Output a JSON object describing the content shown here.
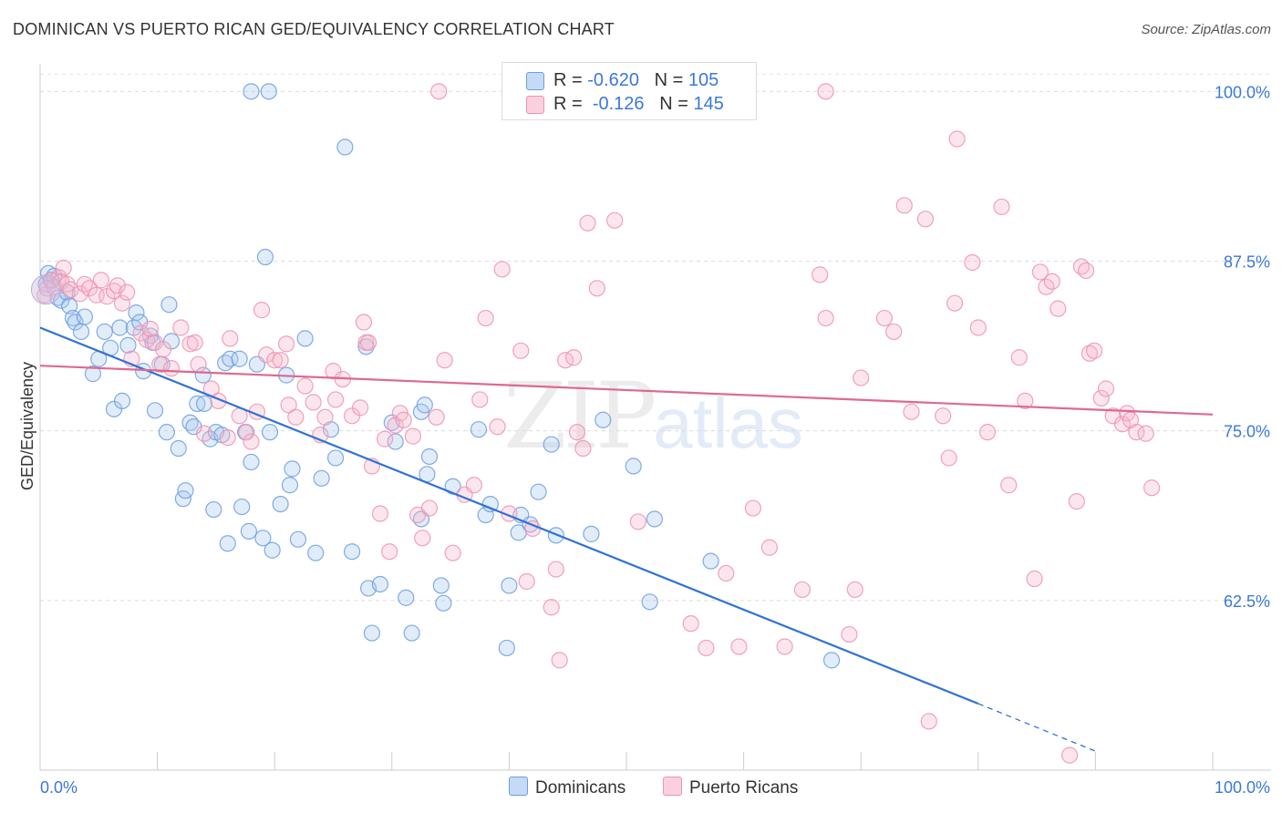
{
  "header": {
    "title": "DOMINICAN VS PUERTO RICAN GED/EQUIVALENCY CORRELATION CHART",
    "source": "Source: ZipAtlas.com"
  },
  "legend": {
    "rows": [
      {
        "r_label": "R =",
        "r_value": "-0.620",
        "n_label": "N =",
        "n_value": "105",
        "color": "#a9c8ee"
      },
      {
        "r_label": "R =",
        "r_value": "-0.126",
        "n_label": "N =",
        "n_value": "145",
        "color": "#f5b8cb"
      }
    ]
  },
  "series_legend": [
    "Dominicans",
    "Puerto Ricans"
  ],
  "watermark": {
    "zip": "ZIP",
    "atlas": "atlas"
  },
  "chart_data": {
    "type": "scatter",
    "ylabel": "GED/Equivalency",
    "xlabel": "",
    "x_tick_labels": [
      "0.0%",
      "100.0%"
    ],
    "y_tick_labels": [
      "62.5%",
      "75.0%",
      "87.5%",
      "100.0%"
    ],
    "y_ticks": [
      62.5,
      75.0,
      87.5,
      100.0
    ],
    "xlim": [
      0,
      100
    ],
    "ylim": [
      50.0,
      101.5
    ],
    "grid": true,
    "colors": {
      "Dominicans": "#6b9edf",
      "Puerto Ricans": "#ee92b0",
      "Dominicans_line": "#2f72d6",
      "Puerto Ricans_line": "#e0688f"
    },
    "series": [
      {
        "name": "Dominicans",
        "trend": {
          "x0": 0,
          "y0": 82.6,
          "x1": 80,
          "y1": 54.9,
          "dash_to_x": 90,
          "dash_to_y": 51.4
        },
        "points": [
          [
            0.5,
            85.8
          ],
          [
            0.7,
            86.6
          ],
          [
            1.0,
            86.1
          ],
          [
            1.2,
            86.4
          ],
          [
            1.5,
            84.8
          ],
          [
            1.8,
            84.6
          ],
          [
            2.3,
            85.2
          ],
          [
            2.5,
            84.2
          ],
          [
            2.8,
            83.3
          ],
          [
            3.0,
            83.0
          ],
          [
            3.5,
            82.3
          ],
          [
            3.8,
            83.4
          ],
          [
            4.5,
            79.2
          ],
          [
            5.0,
            80.3
          ],
          [
            5.5,
            82.3
          ],
          [
            6.0,
            81.1
          ],
          [
            6.3,
            76.6
          ],
          [
            6.8,
            82.6
          ],
          [
            7.0,
            77.2
          ],
          [
            7.5,
            81.3
          ],
          [
            8.0,
            82.6
          ],
          [
            8.2,
            83.7
          ],
          [
            8.5,
            83.0
          ],
          [
            8.8,
            79.4
          ],
          [
            9.4,
            82.0
          ],
          [
            9.6,
            81.5
          ],
          [
            9.8,
            76.5
          ],
          [
            10.4,
            79.9
          ],
          [
            10.8,
            74.9
          ],
          [
            11.0,
            84.3
          ],
          [
            11.2,
            81.6
          ],
          [
            11.8,
            73.7
          ],
          [
            12.2,
            70.0
          ],
          [
            12.4,
            70.6
          ],
          [
            12.8,
            75.6
          ],
          [
            13.1,
            75.3
          ],
          [
            13.4,
            77.0
          ],
          [
            13.9,
            79.1
          ],
          [
            14.0,
            77.0
          ],
          [
            14.5,
            74.4
          ],
          [
            14.8,
            69.2
          ],
          [
            15.0,
            74.9
          ],
          [
            15.5,
            74.7
          ],
          [
            15.8,
            80.0
          ],
          [
            16.2,
            80.3
          ],
          [
            16.0,
            66.7
          ],
          [
            17.0,
            80.3
          ],
          [
            17.2,
            69.4
          ],
          [
            17.5,
            74.9
          ],
          [
            17.8,
            67.6
          ],
          [
            18.0,
            72.7
          ],
          [
            18.5,
            79.9
          ],
          [
            19.0,
            67.1
          ],
          [
            19.2,
            87.8
          ],
          [
            19.6,
            74.9
          ],
          [
            19.8,
            66.2
          ],
          [
            20.5,
            69.6
          ],
          [
            21.0,
            79.1
          ],
          [
            21.3,
            71.0
          ],
          [
            21.5,
            72.2
          ],
          [
            22.0,
            67.0
          ],
          [
            22.6,
            81.8
          ],
          [
            23.5,
            66.0
          ],
          [
            24.0,
            71.5
          ],
          [
            24.8,
            75.1
          ],
          [
            25.2,
            73.0
          ],
          [
            26.0,
            95.9
          ],
          [
            26.6,
            66.1
          ],
          [
            27.8,
            81.2
          ],
          [
            28.0,
            63.4
          ],
          [
            28.3,
            60.1
          ],
          [
            29.0,
            63.7
          ],
          [
            30.0,
            75.6
          ],
          [
            30.3,
            74.2
          ],
          [
            31.2,
            62.7
          ],
          [
            31.7,
            60.1
          ],
          [
            32.5,
            68.5
          ],
          [
            32.5,
            76.4
          ],
          [
            32.8,
            76.9
          ],
          [
            33.0,
            71.8
          ],
          [
            33.2,
            73.1
          ],
          [
            34.2,
            63.6
          ],
          [
            34.4,
            62.3
          ],
          [
            35.2,
            70.9
          ],
          [
            37.4,
            75.1
          ],
          [
            38.0,
            68.8
          ],
          [
            38.4,
            69.6
          ],
          [
            40.0,
            63.6
          ],
          [
            39.8,
            59.0
          ],
          [
            40.8,
            67.5
          ],
          [
            41.0,
            68.8
          ],
          [
            41.8,
            68.1
          ],
          [
            42.5,
            70.5
          ],
          [
            44.0,
            67.3
          ],
          [
            43.6,
            74.0
          ],
          [
            47.0,
            67.4
          ],
          [
            48.0,
            75.8
          ],
          [
            50.6,
            72.4
          ],
          [
            52.0,
            62.4
          ],
          [
            52.4,
            68.5
          ],
          [
            57.2,
            65.4
          ],
          [
            67.5,
            58.1
          ],
          [
            18.0,
            100.0
          ],
          [
            19.5,
            100.0
          ]
        ]
      },
      {
        "name": "Puerto Ricans",
        "trend": {
          "x0": 0,
          "y0": 79.8,
          "x1": 100,
          "y1": 76.2
        },
        "points": [
          [
            0.4,
            85.0
          ],
          [
            0.6,
            85.5
          ],
          [
            0.9,
            86.1
          ],
          [
            1.2,
            85.6
          ],
          [
            1.6,
            86.3
          ],
          [
            1.8,
            86.0
          ],
          [
            2.0,
            87.0
          ],
          [
            2.3,
            85.8
          ],
          [
            2.6,
            85.4
          ],
          [
            3.4,
            85.1
          ],
          [
            3.8,
            85.8
          ],
          [
            4.2,
            85.5
          ],
          [
            4.8,
            85.0
          ],
          [
            5.2,
            86.1
          ],
          [
            5.7,
            84.9
          ],
          [
            6.3,
            85.3
          ],
          [
            6.6,
            85.7
          ],
          [
            7.0,
            84.4
          ],
          [
            7.4,
            85.2
          ],
          [
            7.8,
            80.3
          ],
          [
            8.6,
            82.2
          ],
          [
            9.1,
            81.7
          ],
          [
            9.4,
            82.5
          ],
          [
            9.8,
            81.5
          ],
          [
            10.2,
            79.9
          ],
          [
            10.5,
            81.0
          ],
          [
            11.2,
            79.6
          ],
          [
            12.0,
            82.6
          ],
          [
            12.8,
            81.4
          ],
          [
            13.2,
            81.5
          ],
          [
            13.5,
            79.9
          ],
          [
            14.0,
            74.8
          ],
          [
            14.6,
            78.1
          ],
          [
            15.2,
            77.2
          ],
          [
            16.0,
            74.5
          ],
          [
            16.2,
            81.8
          ],
          [
            17.0,
            76.1
          ],
          [
            17.6,
            74.9
          ],
          [
            18.0,
            74.2
          ],
          [
            18.5,
            76.4
          ],
          [
            18.9,
            83.9
          ],
          [
            19.3,
            80.6
          ],
          [
            20.0,
            80.2
          ],
          [
            20.5,
            80.2
          ],
          [
            21.0,
            81.4
          ],
          [
            21.2,
            76.9
          ],
          [
            21.8,
            76.0
          ],
          [
            22.6,
            78.3
          ],
          [
            23.3,
            77.1
          ],
          [
            23.9,
            74.7
          ],
          [
            24.3,
            76.0
          ],
          [
            25.0,
            79.4
          ],
          [
            25.2,
            77.3
          ],
          [
            25.8,
            78.8
          ],
          [
            26.6,
            76.1
          ],
          [
            27.3,
            76.7
          ],
          [
            27.6,
            83.0
          ],
          [
            27.8,
            81.5
          ],
          [
            28.0,
            81.5
          ],
          [
            28.3,
            72.4
          ],
          [
            29.0,
            68.9
          ],
          [
            29.4,
            74.4
          ],
          [
            29.8,
            66.1
          ],
          [
            30.3,
            75.4
          ],
          [
            30.7,
            76.3
          ],
          [
            31.0,
            75.8
          ],
          [
            31.8,
            74.6
          ],
          [
            32.2,
            68.8
          ],
          [
            32.6,
            67.1
          ],
          [
            33.2,
            69.3
          ],
          [
            33.8,
            76.0
          ],
          [
            34.5,
            80.2
          ],
          [
            35.2,
            66.0
          ],
          [
            36.2,
            70.3
          ],
          [
            37.0,
            71.0
          ],
          [
            37.5,
            77.3
          ],
          [
            38.0,
            83.3
          ],
          [
            39.0,
            75.3
          ],
          [
            39.4,
            86.9
          ],
          [
            40.0,
            68.9
          ],
          [
            41.0,
            80.9
          ],
          [
            41.5,
            63.9
          ],
          [
            42.0,
            67.8
          ],
          [
            43.6,
            62.0
          ],
          [
            44.0,
            64.8
          ],
          [
            44.3,
            58.1
          ],
          [
            44.8,
            80.2
          ],
          [
            45.5,
            80.4
          ],
          [
            45.8,
            74.9
          ],
          [
            46.3,
            73.7
          ],
          [
            46.7,
            90.3
          ],
          [
            47.5,
            85.5
          ],
          [
            49.0,
            90.5
          ],
          [
            51.0,
            68.3
          ],
          [
            55.5,
            60.8
          ],
          [
            56.8,
            59.0
          ],
          [
            58.5,
            64.5
          ],
          [
            59.6,
            59.1
          ],
          [
            60.8,
            69.3
          ],
          [
            62.2,
            66.4
          ],
          [
            63.5,
            59.1
          ],
          [
            65.0,
            63.3
          ],
          [
            66.5,
            86.5
          ],
          [
            67.0,
            83.3
          ],
          [
            69.0,
            60.0
          ],
          [
            69.5,
            63.3
          ],
          [
            70.0,
            78.9
          ],
          [
            72.0,
            83.3
          ],
          [
            72.8,
            82.3
          ],
          [
            73.7,
            91.6
          ],
          [
            74.3,
            76.4
          ],
          [
            75.5,
            90.6
          ],
          [
            75.8,
            53.6
          ],
          [
            77.0,
            76.1
          ],
          [
            77.5,
            73.0
          ],
          [
            78.0,
            84.4
          ],
          [
            78.2,
            96.5
          ],
          [
            79.5,
            87.4
          ],
          [
            80.8,
            74.9
          ],
          [
            82.0,
            91.5
          ],
          [
            82.6,
            71.0
          ],
          [
            83.5,
            80.4
          ],
          [
            84.0,
            77.2
          ],
          [
            84.8,
            64.1
          ],
          [
            85.3,
            86.7
          ],
          [
            85.8,
            85.6
          ],
          [
            86.3,
            86.0
          ],
          [
            86.8,
            84.0
          ],
          [
            87.8,
            51.1
          ],
          [
            88.4,
            69.8
          ],
          [
            88.8,
            87.1
          ],
          [
            89.2,
            86.8
          ],
          [
            89.5,
            80.7
          ],
          [
            89.9,
            80.9
          ],
          [
            90.5,
            77.4
          ],
          [
            90.9,
            78.1
          ],
          [
            91.5,
            76.1
          ],
          [
            92.3,
            75.5
          ],
          [
            92.7,
            76.3
          ],
          [
            93.0,
            75.8
          ],
          [
            93.5,
            74.9
          ],
          [
            94.3,
            74.8
          ],
          [
            94.8,
            70.8
          ],
          [
            34.0,
            100.0
          ],
          [
            57.5,
            100.0
          ],
          [
            67.0,
            100.0
          ],
          [
            80.0,
            82.6
          ]
        ]
      }
    ]
  }
}
